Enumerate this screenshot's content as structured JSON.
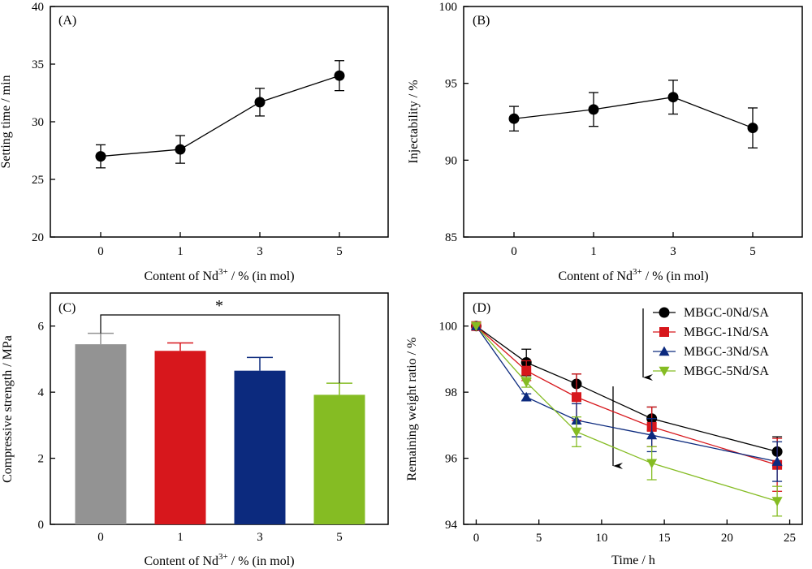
{
  "figure": {
    "panels": [
      {
        "label": "(A)",
        "xlabel_parts": [
          "Content of Nd",
          "3+",
          " / % (in mol)"
        ],
        "ylabel": "Setting time / min"
      },
      {
        "label": "(B)",
        "xlabel_parts": [
          "Content of Nd",
          "3+",
          " / % (in mol)"
        ],
        "ylabel": "Injectability / %"
      },
      {
        "label": "(C)",
        "xlabel_parts": [
          "Content of Nd",
          "3+",
          " / % (in mol)"
        ],
        "ylabel": "Compressive strength / MPa",
        "significance_marker": "*"
      },
      {
        "label": "(D)",
        "xlabel": "Time / h",
        "ylabel": "Remaining weight ratio / %"
      }
    ]
  },
  "chart_data": [
    {
      "type": "line",
      "panel": "(A)",
      "categories": [
        "0",
        "1",
        "3",
        "5"
      ],
      "values": [
        27.0,
        27.6,
        31.7,
        34.0
      ],
      "errors": [
        1.0,
        1.2,
        1.2,
        1.3
      ],
      "ylim": [
        20,
        40
      ],
      "yticks": [
        20,
        25,
        30,
        35,
        40
      ],
      "xlabel": "Content of Nd3+ / % (in mol)",
      "ylabel": "Setting time / min",
      "color": "#000000"
    },
    {
      "type": "line",
      "panel": "(B)",
      "categories": [
        "0",
        "1",
        "3",
        "5"
      ],
      "values": [
        92.7,
        93.3,
        94.1,
        92.1
      ],
      "errors": [
        0.8,
        1.1,
        1.1,
        1.3
      ],
      "ylim": [
        85,
        100
      ],
      "yticks": [
        85,
        90,
        95,
        100
      ],
      "xlabel": "Content of Nd3+ / % (in mol)",
      "ylabel": "Injectability / %",
      "color": "#000000"
    },
    {
      "type": "bar",
      "panel": "(C)",
      "categories": [
        "0",
        "1",
        "3",
        "5"
      ],
      "values": [
        5.45,
        5.25,
        4.65,
        3.92
      ],
      "errors": [
        0.33,
        0.24,
        0.4,
        0.35
      ],
      "colors": [
        "#939393",
        "#d7171c",
        "#0c2a7e",
        "#85bc23"
      ],
      "ylim": [
        0,
        7
      ],
      "yticks": [
        0,
        2,
        4,
        6
      ],
      "xlabel": "Content of Nd3+ / % (in mol)",
      "ylabel": "Compressive strength / MPa",
      "significance": {
        "between": [
          "0",
          "5"
        ],
        "marker": "*"
      }
    },
    {
      "type": "line",
      "panel": "(D)",
      "x": [
        0,
        4,
        8,
        14,
        24
      ],
      "xlim": [
        -1,
        26
      ],
      "xticks": [
        0,
        5,
        10,
        15,
        20,
        25
      ],
      "ylim": [
        94,
        101
      ],
      "yticks": [
        94,
        96,
        98,
        100
      ],
      "xlabel": "Time / h",
      "ylabel": "Remaining weight ratio / %",
      "legend_position": "top-right",
      "series": [
        {
          "name": "MBGC-0Nd/SA",
          "color": "#000000",
          "marker": "circle",
          "values": [
            100,
            98.9,
            98.25,
            97.2,
            96.2
          ],
          "errors": [
            0,
            0.4,
            0.3,
            0.35,
            0.45
          ]
        },
        {
          "name": "MBGC-1Nd/SA",
          "color": "#d7171c",
          "marker": "square",
          "values": [
            100,
            98.65,
            97.85,
            96.95,
            95.8
          ],
          "errors": [
            0,
            0.3,
            0.7,
            0.6,
            0.8
          ]
        },
        {
          "name": "MBGC-3Nd/SA",
          "color": "#0c2a7e",
          "marker": "triangle-up",
          "values": [
            100,
            97.85,
            97.15,
            96.7,
            95.9
          ],
          "errors": [
            0,
            0.1,
            0.5,
            0.5,
            0.6
          ]
        },
        {
          "name": "MBGC-5Nd/SA",
          "color": "#85bc23",
          "marker": "triangle-down",
          "values": [
            100,
            98.3,
            96.8,
            95.85,
            94.7
          ],
          "errors": [
            0,
            0.15,
            0.45,
            0.5,
            0.45
          ]
        }
      ]
    }
  ]
}
